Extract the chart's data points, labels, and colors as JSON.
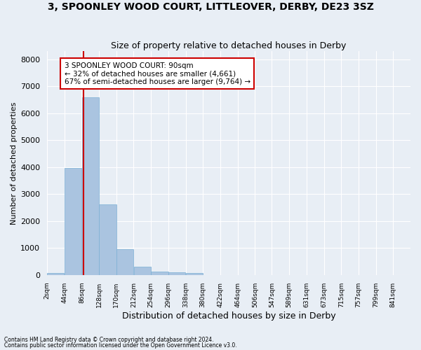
{
  "title": "3, SPOONLEY WOOD COURT, LITTLEOVER, DERBY, DE23 3SZ",
  "subtitle": "Size of property relative to detached houses in Derby",
  "xlabel": "Distribution of detached houses by size in Derby",
  "ylabel": "Number of detached properties",
  "footnote1": "Contains HM Land Registry data © Crown copyright and database right 2024.",
  "footnote2": "Contains public sector information licensed under the Open Government Licence v3.0.",
  "bar_values": [
    75,
    3980,
    6580,
    2620,
    960,
    310,
    120,
    100,
    80,
    0,
    0,
    0,
    0,
    0,
    0,
    0,
    0,
    0,
    0,
    0
  ],
  "bar_labels": [
    "2sqm",
    "44sqm",
    "86sqm",
    "128sqm",
    "170sqm",
    "212sqm",
    "254sqm",
    "296sqm",
    "338sqm",
    "380sqm",
    "422sqm",
    "464sqm",
    "506sqm",
    "547sqm",
    "589sqm",
    "631sqm",
    "673sqm",
    "715sqm",
    "757sqm",
    "799sqm",
    "841sqm"
  ],
  "bin_edges": [
    2,
    44,
    86,
    128,
    170,
    212,
    254,
    296,
    338,
    380,
    422,
    464,
    506,
    547,
    589,
    631,
    673,
    715,
    757,
    799,
    841
  ],
  "bar_color": "#aac4e0",
  "bar_edgecolor": "#7aafd4",
  "vline_x": 90,
  "vline_color": "#cc0000",
  "annotation_line1": "3 SPOONLEY WOOD COURT: 90sqm",
  "annotation_line2": "← 32% of detached houses are smaller (4,661)",
  "annotation_line3": "67% of semi-detached houses are larger (9,764) →",
  "annotation_box_color": "#ffffff",
  "annotation_box_edgecolor": "#cc0000",
  "ylim": [
    0,
    8300
  ],
  "yticks": [
    0,
    1000,
    2000,
    3000,
    4000,
    5000,
    6000,
    7000,
    8000
  ],
  "background_color": "#e8eef5",
  "grid_color": "#ffffff",
  "title_fontsize": 10,
  "subtitle_fontsize": 9,
  "xlabel_fontsize": 9,
  "ylabel_fontsize": 8
}
